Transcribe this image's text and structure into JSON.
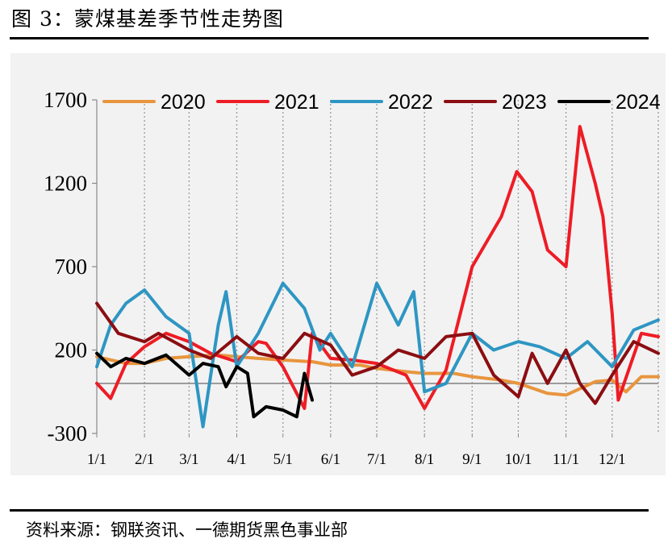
{
  "figure": {
    "title": "图 3：蒙煤基差季节性走势图",
    "source": "资料来源：钢联资讯、一德期货黑色事业部"
  },
  "chart_data": {
    "type": "line",
    "x_axis_type": "day_of_year",
    "x_ticks": [
      "1/1",
      "2/1",
      "3/1",
      "4/1",
      "5/1",
      "6/1",
      "7/1",
      "8/1",
      "9/1",
      "10/1",
      "11/1",
      "12/1"
    ],
    "y_ticks": [
      "1700",
      "1200",
      "700",
      "200",
      "-300"
    ],
    "ylim": [
      -300,
      1700
    ],
    "grid": {
      "vertical_dotted": true,
      "horizontal": false
    },
    "legend_position": "top",
    "series": [
      {
        "name": "2020",
        "color": "#E8953E",
        "points": [
          [
            "1/1",
            160
          ],
          [
            "1/20",
            120
          ],
          [
            "2/1",
            120
          ],
          [
            "2/15",
            150
          ],
          [
            "3/1",
            160
          ],
          [
            "3/20",
            170
          ],
          [
            "4/1",
            160
          ],
          [
            "4/15",
            150
          ],
          [
            "5/1",
            140
          ],
          [
            "5/20",
            130
          ],
          [
            "6/1",
            110
          ],
          [
            "6/20",
            110
          ],
          [
            "7/1",
            90
          ],
          [
            "7/20",
            70
          ],
          [
            "8/1",
            60
          ],
          [
            "8/20",
            60
          ],
          [
            "9/1",
            40
          ],
          [
            "9/20",
            20
          ],
          [
            "10/1",
            0
          ],
          [
            "10/20",
            -60
          ],
          [
            "11/1",
            -70
          ],
          [
            "11/20",
            10
          ],
          [
            "12/1",
            20
          ],
          [
            "12/10",
            -50
          ],
          [
            "12/20",
            40
          ],
          [
            "12/31",
            40
          ]
        ]
      },
      {
        "name": "2021",
        "color": "#EE1C25",
        "points": [
          [
            "1/1",
            0
          ],
          [
            "1/10",
            -90
          ],
          [
            "1/20",
            120
          ],
          [
            "2/1",
            220
          ],
          [
            "2/15",
            300
          ],
          [
            "3/1",
            250
          ],
          [
            "3/15",
            180
          ],
          [
            "4/1",
            130
          ],
          [
            "4/15",
            250
          ],
          [
            "4/20",
            240
          ],
          [
            "5/1",
            100
          ],
          [
            "5/15",
            -150
          ],
          [
            "5/20",
            300
          ],
          [
            "6/1",
            150
          ],
          [
            "6/15",
            140
          ],
          [
            "7/1",
            120
          ],
          [
            "7/20",
            50
          ],
          [
            "8/1",
            -150
          ],
          [
            "8/15",
            80
          ],
          [
            "9/1",
            700
          ],
          [
            "9/20",
            1000
          ],
          [
            "9/30",
            1270
          ],
          [
            "10/10",
            1150
          ],
          [
            "10/20",
            800
          ],
          [
            "11/1",
            700
          ],
          [
            "11/10",
            1540
          ],
          [
            "11/20",
            1200
          ],
          [
            "11/25",
            1000
          ],
          [
            "12/1",
            420
          ],
          [
            "12/5",
            -100
          ],
          [
            "12/20",
            300
          ],
          [
            "12/31",
            280
          ]
        ]
      },
      {
        "name": "2022",
        "color": "#2E96C3",
        "points": [
          [
            "1/1",
            100
          ],
          [
            "1/10",
            350
          ],
          [
            "1/20",
            480
          ],
          [
            "2/1",
            560
          ],
          [
            "2/15",
            400
          ],
          [
            "3/1",
            300
          ],
          [
            "3/10",
            -260
          ],
          [
            "3/20",
            350
          ],
          [
            "3/25",
            550
          ],
          [
            "4/1",
            100
          ],
          [
            "4/15",
            300
          ],
          [
            "5/1",
            600
          ],
          [
            "5/15",
            450
          ],
          [
            "5/25",
            200
          ],
          [
            "6/1",
            300
          ],
          [
            "6/15",
            100
          ],
          [
            "7/1",
            600
          ],
          [
            "7/15",
            350
          ],
          [
            "7/25",
            550
          ],
          [
            "8/1",
            -50
          ],
          [
            "8/15",
            0
          ],
          [
            "9/1",
            300
          ],
          [
            "9/15",
            200
          ],
          [
            "10/1",
            250
          ],
          [
            "10/15",
            220
          ],
          [
            "11/1",
            150
          ],
          [
            "11/15",
            250
          ],
          [
            "12/1",
            100
          ],
          [
            "12/15",
            320
          ],
          [
            "12/31",
            380
          ]
        ]
      },
      {
        "name": "2023",
        "color": "#8B0E12",
        "points": [
          [
            "1/1",
            480
          ],
          [
            "1/15",
            300
          ],
          [
            "2/1",
            250
          ],
          [
            "2/10",
            300
          ],
          [
            "3/1",
            200
          ],
          [
            "3/15",
            150
          ],
          [
            "4/1",
            280
          ],
          [
            "4/15",
            180
          ],
          [
            "5/1",
            150
          ],
          [
            "5/15",
            300
          ],
          [
            "6/1",
            230
          ],
          [
            "6/15",
            50
          ],
          [
            "7/1",
            100
          ],
          [
            "7/15",
            200
          ],
          [
            "8/1",
            150
          ],
          [
            "8/15",
            280
          ],
          [
            "9/1",
            300
          ],
          [
            "9/15",
            50
          ],
          [
            "10/1",
            -80
          ],
          [
            "10/10",
            180
          ],
          [
            "10/20",
            0
          ],
          [
            "11/1",
            200
          ],
          [
            "11/10",
            0
          ],
          [
            "11/20",
            -120
          ],
          [
            "12/1",
            50
          ],
          [
            "12/15",
            250
          ],
          [
            "12/31",
            180
          ]
        ]
      },
      {
        "name": "2024",
        "color": "#000000",
        "points": [
          [
            "1/1",
            180
          ],
          [
            "1/10",
            100
          ],
          [
            "1/20",
            150
          ],
          [
            "2/1",
            120
          ],
          [
            "2/15",
            170
          ],
          [
            "3/1",
            50
          ],
          [
            "3/10",
            120
          ],
          [
            "3/20",
            100
          ],
          [
            "3/25",
            -20
          ],
          [
            "4/1",
            100
          ],
          [
            "4/8",
            60
          ],
          [
            "4/12",
            -200
          ],
          [
            "4/20",
            -140
          ],
          [
            "5/1",
            -160
          ],
          [
            "5/10",
            -200
          ],
          [
            "5/15",
            60
          ],
          [
            "5/20",
            -100
          ]
        ]
      }
    ]
  }
}
